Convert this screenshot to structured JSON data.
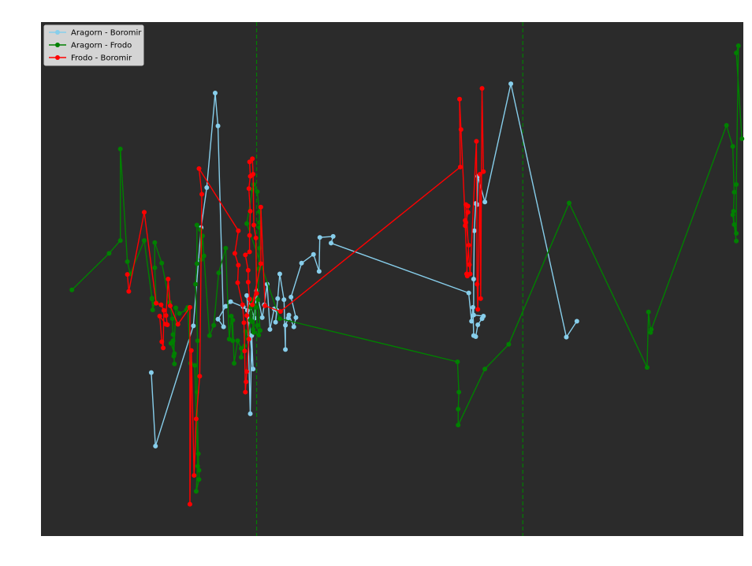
{
  "chart_data": {
    "type": "line",
    "title": "",
    "xlabel": "",
    "ylabel": "",
    "background": "#2b2b2b",
    "grid": false,
    "axes_visible": false,
    "legend_position": "top-left",
    "xlim": [
      0,
      1000
    ],
    "ylim": [
      0,
      1000
    ],
    "vlines": [
      {
        "x": 307,
        "color": "#008000",
        "style": "dashed"
      },
      {
        "x": 686,
        "color": "#008000",
        "style": "dashed"
      }
    ],
    "series": [
      {
        "name": "Aragorn - Boromir",
        "color": "#87ceeb",
        "points": [
          [
            157,
            682
          ],
          [
            163,
            825
          ],
          [
            217,
            591
          ],
          [
            228,
            400
          ],
          [
            236,
            322
          ],
          [
            248,
            138
          ],
          [
            252,
            202
          ],
          [
            260,
            593
          ],
          [
            252,
            578
          ],
          [
            263,
            553
          ],
          [
            270,
            544
          ],
          [
            288,
            554
          ],
          [
            294,
            561
          ],
          [
            298,
            762
          ],
          [
            300,
            610
          ],
          [
            302,
            675
          ],
          [
            293,
            532
          ],
          [
            304,
            576
          ],
          [
            307,
            523
          ],
          [
            315,
            575
          ],
          [
            318,
            550
          ],
          [
            322,
            510
          ],
          [
            326,
            598
          ],
          [
            332,
            558
          ],
          [
            336,
            561
          ],
          [
            334,
            584
          ],
          [
            337,
            538
          ],
          [
            340,
            490
          ],
          [
            346,
            540
          ],
          [
            348,
            637
          ],
          [
            348,
            590
          ],
          [
            352,
            576
          ],
          [
            353,
            570
          ],
          [
            360,
            593
          ],
          [
            363,
            575
          ],
          [
            356,
            535
          ],
          [
            371,
            469
          ],
          [
            388,
            452
          ],
          [
            396,
            485
          ],
          [
            397,
            419
          ],
          [
            416,
            417
          ],
          [
            413,
            430
          ],
          [
            609,
            527
          ],
          [
            613,
            582
          ],
          [
            615,
            555
          ],
          [
            616,
            610
          ],
          [
            619,
            612
          ],
          [
            622,
            589
          ],
          [
            628,
            577
          ],
          [
            630,
            572
          ],
          [
            616,
            570
          ],
          [
            616,
            500
          ],
          [
            617,
            406
          ],
          [
            619,
            353
          ],
          [
            621,
            355
          ],
          [
            622,
            300
          ],
          [
            632,
            350
          ],
          [
            669,
            120
          ],
          [
            748,
            613
          ],
          [
            763,
            582
          ]
        ]
      },
      {
        "name": "Aragorn - Frodo",
        "color": "#008000",
        "points": [
          [
            44,
            521
          ],
          [
            97,
            450
          ],
          [
            113,
            425
          ],
          [
            113,
            247
          ],
          [
            123,
            466
          ],
          [
            127,
            490
          ],
          [
            147,
            425
          ],
          [
            158,
            537
          ],
          [
            158,
            539
          ],
          [
            159,
            560
          ],
          [
            161,
            548
          ],
          [
            163,
            547
          ],
          [
            164,
            546
          ],
          [
            162,
            478
          ],
          [
            162,
            429
          ],
          [
            172,
            469
          ],
          [
            183,
            545
          ],
          [
            183,
            546
          ],
          [
            187,
            577
          ],
          [
            188,
            608
          ],
          [
            190,
            645
          ],
          [
            185,
            625
          ],
          [
            188,
            620
          ],
          [
            190,
            665
          ],
          [
            189,
            650
          ],
          [
            192,
            556
          ],
          [
            197,
            567
          ],
          [
            207,
            560
          ],
          [
            209,
            555
          ],
          [
            213,
            664
          ],
          [
            219,
            668
          ],
          [
            223,
            864
          ],
          [
            221,
            913
          ],
          [
            225,
            890
          ],
          [
            225,
            872
          ],
          [
            224,
            840
          ],
          [
            222,
            720
          ],
          [
            223,
            620
          ],
          [
            220,
            510
          ],
          [
            222,
            470
          ],
          [
            222,
            395
          ],
          [
            227,
            404
          ],
          [
            228,
            462
          ],
          [
            230,
            416
          ],
          [
            232,
            455
          ],
          [
            240,
            610
          ],
          [
            246,
            590
          ],
          [
            253,
            488
          ],
          [
            263,
            440
          ],
          [
            268,
            617
          ],
          [
            271,
            572
          ],
          [
            273,
            620
          ],
          [
            273,
            580
          ],
          [
            275,
            664
          ],
          [
            280,
            620
          ],
          [
            285,
            635
          ],
          [
            285,
            652
          ],
          [
            290,
            630
          ],
          [
            291,
            602
          ],
          [
            295,
            616
          ],
          [
            298,
            580
          ],
          [
            298,
            554
          ],
          [
            300,
            540
          ],
          [
            301,
            583
          ],
          [
            302,
            598
          ],
          [
            303,
            604
          ],
          [
            304,
            551
          ],
          [
            306,
            555
          ],
          [
            308,
            590
          ],
          [
            310,
            609
          ],
          [
            312,
            600
          ],
          [
            309,
            540
          ],
          [
            310,
            480
          ],
          [
            311,
            440
          ],
          [
            311,
            400
          ],
          [
            311,
            390
          ],
          [
            311,
            369
          ],
          [
            308,
            330
          ],
          [
            303,
            316
          ],
          [
            301,
            326
          ],
          [
            293,
            392
          ],
          [
            340,
            577
          ],
          [
            593,
            661
          ],
          [
            595,
            720
          ],
          [
            594,
            753
          ],
          [
            594,
            784
          ],
          [
            632,
            675
          ],
          [
            666,
            627
          ],
          [
            752,
            352
          ],
          [
            863,
            672
          ],
          [
            865,
            564
          ],
          [
            868,
            604
          ],
          [
            869,
            598
          ],
          [
            976,
            201
          ],
          [
            985,
            242
          ],
          [
            987,
            331
          ],
          [
            986,
            368
          ],
          [
            987,
            394
          ],
          [
            990,
            426
          ],
          [
            985,
            375
          ],
          [
            990,
            411
          ],
          [
            990,
            316
          ],
          [
            993,
            46
          ],
          [
            990,
            60
          ],
          [
            998,
            227
          ]
        ]
      },
      {
        "name": "Frodo - Boromir",
        "color": "#ff0000",
        "points": [
          [
            123,
            491
          ],
          [
            125,
            524
          ],
          [
            147,
            370
          ],
          [
            164,
            547
          ],
          [
            171,
            550
          ],
          [
            175,
            561
          ],
          [
            174,
            634
          ],
          [
            172,
            622
          ],
          [
            169,
            572
          ],
          [
            178,
            588
          ],
          [
            180,
            589
          ],
          [
            178,
            571
          ],
          [
            181,
            500
          ],
          [
            184,
            552
          ],
          [
            195,
            588
          ],
          [
            212,
            555
          ],
          [
            212,
            938
          ],
          [
            214,
            639
          ],
          [
            218,
            882
          ],
          [
            221,
            772
          ],
          [
            226,
            689
          ],
          [
            229,
            335
          ],
          [
            225,
            285
          ],
          [
            281,
            406
          ],
          [
            276,
            450
          ],
          [
            281,
            473
          ],
          [
            280,
            507
          ],
          [
            287,
            550
          ],
          [
            289,
            585
          ],
          [
            290,
            640
          ],
          [
            291,
            720
          ],
          [
            292,
            700
          ],
          [
            293,
            680
          ],
          [
            296,
            617
          ],
          [
            293,
            571
          ],
          [
            297,
            539
          ],
          [
            295,
            506
          ],
          [
            295,
            483
          ],
          [
            291,
            453
          ],
          [
            297,
            447
          ],
          [
            297,
            415
          ],
          [
            298,
            368
          ],
          [
            296,
            324
          ],
          [
            298,
            300
          ],
          [
            297,
            272
          ],
          [
            301,
            266
          ],
          [
            302,
            296
          ],
          [
            303,
            395
          ],
          [
            306,
            420
          ],
          [
            307,
            528
          ],
          [
            301,
            550
          ],
          [
            313,
            470
          ],
          [
            313,
            360
          ],
          [
            319,
            552
          ],
          [
            341,
            563
          ],
          [
            597,
            282
          ],
          [
            596,
            150
          ],
          [
            598,
            209
          ],
          [
            604,
            386
          ],
          [
            604,
            396
          ],
          [
            607,
            494
          ],
          [
            606,
            490
          ],
          [
            609,
            434
          ],
          [
            605,
            390
          ],
          [
            608,
            370
          ],
          [
            608,
            358
          ],
          [
            605,
            355
          ],
          [
            610,
            472
          ],
          [
            611,
            490
          ],
          [
            620,
            232
          ],
          [
            621,
            510
          ],
          [
            622,
            559
          ],
          [
            625,
            296
          ],
          [
            626,
            538
          ],
          [
            628,
            129
          ],
          [
            630,
            291
          ]
        ]
      }
    ]
  }
}
